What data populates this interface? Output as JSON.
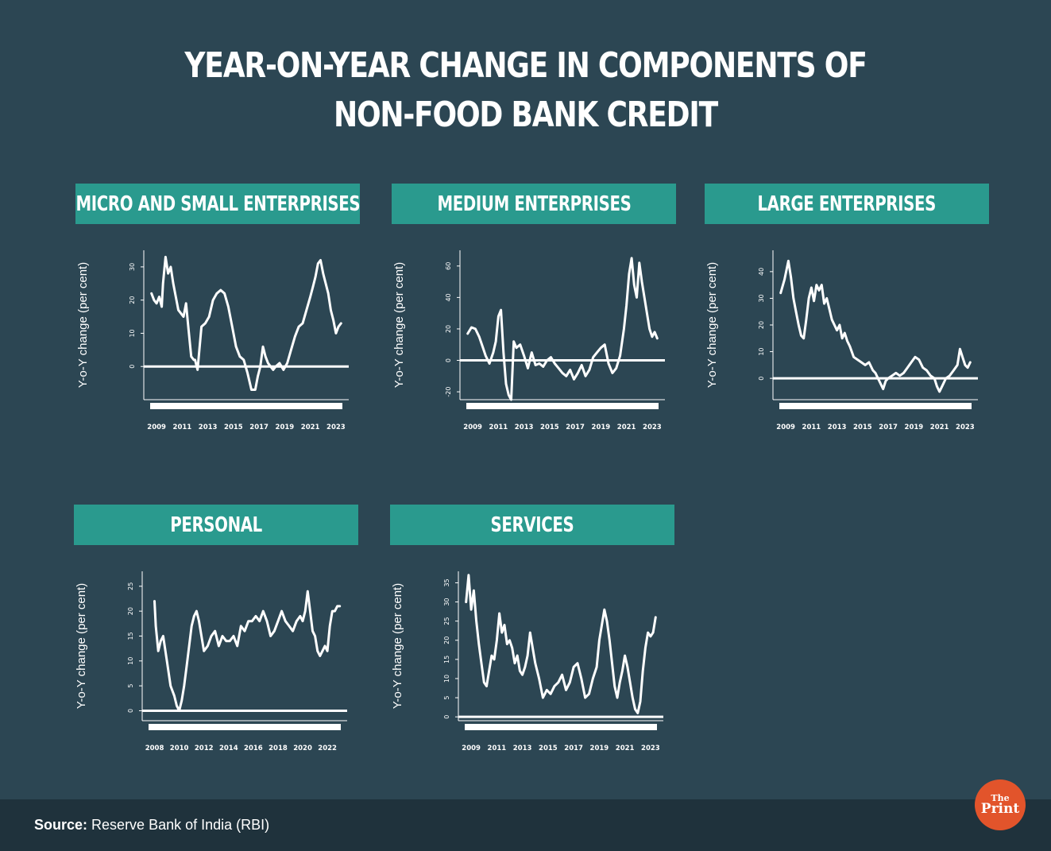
{
  "title_line1": "YEAR-ON-YEAR CHANGE IN COMPONENTS OF",
  "title_line2": "NON-FOOD BANK CREDIT",
  "footer": {
    "source_label": "Source:",
    "source_text": "Reserve Bank of India (RBI)"
  },
  "logo": {
    "top": "The",
    "bottom": "Print"
  },
  "colors": {
    "background": "#2c4653",
    "header": "#2a9a8e",
    "footer": "#1f323c",
    "logo": "#e2542b",
    "line": "#ffffff"
  },
  "chart_data": [
    {
      "type": "line",
      "title": "MICRO AND SMALL ENTERPRISES",
      "ylabel": "Y-o-Y change (per cent)",
      "xlim": [
        2008,
        2024
      ],
      "ylim": [
        -10,
        35
      ],
      "yticks": [
        0,
        10,
        20,
        30
      ],
      "xticks": [
        2009,
        2011,
        2013,
        2015,
        2017,
        2019,
        2021,
        2023
      ],
      "x": [
        2008.6,
        2008.8,
        2009.0,
        2009.2,
        2009.4,
        2009.5,
        2009.7,
        2009.9,
        2010.1,
        2010.3,
        2010.5,
        2010.7,
        2010.9,
        2011.1,
        2011.3,
        2011.5,
        2011.7,
        2011.9,
        2012.0,
        2012.2,
        2012.5,
        2012.8,
        2013.1,
        2013.4,
        2013.7,
        2014.0,
        2014.3,
        2014.6,
        2014.9,
        2015.2,
        2015.5,
        2015.8,
        2016.1,
        2016.4,
        2016.7,
        2016.9,
        2017.1,
        2017.3,
        2017.5,
        2017.7,
        2017.9,
        2018.1,
        2018.3,
        2018.6,
        2018.9,
        2019.2,
        2019.5,
        2019.8,
        2020.1,
        2020.4,
        2020.7,
        2021.0,
        2021.2,
        2021.4,
        2021.6,
        2021.8,
        2022.0,
        2022.2,
        2022.4,
        2022.6,
        2022.8,
        2023.0,
        2023.2,
        2023.4
      ],
      "values": [
        22,
        20,
        19,
        21,
        18,
        25,
        33,
        28,
        30,
        25,
        21,
        17,
        16,
        15,
        19,
        11,
        3,
        2,
        2,
        -1,
        12,
        13,
        15,
        20,
        22,
        23,
        22,
        18,
        12,
        6,
        3,
        2,
        -2,
        -7,
        -7,
        -3,
        0,
        6,
        3,
        1,
        0,
        -1,
        0,
        1,
        -1,
        1,
        5,
        9,
        12,
        13,
        17,
        21,
        24,
        27,
        31,
        32,
        28,
        25,
        22,
        17,
        14,
        10,
        12,
        13
      ]
    },
    {
      "type": "line",
      "title": "MEDIUM ENTERPRISES",
      "ylabel": "Y-o-Y change (per cent)",
      "xlim": [
        2008,
        2024
      ],
      "ylim": [
        -25,
        70
      ],
      "yticks": [
        -20,
        0,
        20,
        40,
        60
      ],
      "xticks": [
        2009,
        2011,
        2013,
        2015,
        2017,
        2019,
        2021,
        2023
      ],
      "x": [
        2008.6,
        2008.9,
        2009.2,
        2009.5,
        2009.8,
        2010.0,
        2010.3,
        2010.6,
        2010.8,
        2011.0,
        2011.2,
        2011.4,
        2011.6,
        2011.8,
        2012.0,
        2012.2,
        2012.4,
        2012.7,
        2013.0,
        2013.3,
        2013.6,
        2013.9,
        2014.2,
        2014.5,
        2014.8,
        2015.1,
        2015.4,
        2015.7,
        2016.0,
        2016.3,
        2016.6,
        2016.9,
        2017.2,
        2017.5,
        2017.8,
        2018.1,
        2018.4,
        2018.7,
        2019.0,
        2019.3,
        2019.6,
        2019.9,
        2020.2,
        2020.5,
        2020.8,
        2021.0,
        2021.2,
        2021.4,
        2021.6,
        2021.8,
        2022.0,
        2022.2,
        2022.4,
        2022.6,
        2022.8,
        2023.0,
        2023.2,
        2023.4
      ],
      "values": [
        17,
        21,
        20,
        15,
        8,
        3,
        -2,
        5,
        12,
        28,
        32,
        5,
        -15,
        -22,
        -25,
        12,
        8,
        10,
        3,
        -5,
        5,
        -3,
        -2,
        -4,
        0,
        2,
        -2,
        -5,
        -8,
        -10,
        -6,
        -12,
        -8,
        -3,
        -10,
        -6,
        2,
        5,
        8,
        10,
        -2,
        -8,
        -5,
        3,
        20,
        35,
        55,
        65,
        48,
        40,
        62,
        50,
        40,
        30,
        20,
        15,
        18,
        14
      ]
    },
    {
      "type": "line",
      "title": "LARGE ENTERPRISES",
      "ylabel": "Y-o-Y change (per cent)",
      "xlim": [
        2008,
        2024
      ],
      "ylim": [
        -8,
        48
      ],
      "yticks": [
        0,
        10,
        20,
        30,
        40
      ],
      "xticks": [
        2009,
        2011,
        2013,
        2015,
        2017,
        2019,
        2021,
        2023
      ],
      "x": [
        2008.6,
        2008.9,
        2009.2,
        2009.4,
        2009.6,
        2009.8,
        2010.0,
        2010.2,
        2010.4,
        2010.6,
        2010.8,
        2011.0,
        2011.2,
        2011.4,
        2011.6,
        2011.8,
        2012.0,
        2012.2,
        2012.4,
        2012.6,
        2012.8,
        2013.0,
        2013.2,
        2013.4,
        2013.6,
        2013.8,
        2014.0,
        2014.3,
        2014.6,
        2014.9,
        2015.2,
        2015.5,
        2015.8,
        2016.0,
        2016.2,
        2016.4,
        2016.6,
        2016.8,
        2017.0,
        2017.3,
        2017.6,
        2017.9,
        2018.2,
        2018.5,
        2018.8,
        2019.1,
        2019.4,
        2019.7,
        2020.0,
        2020.3,
        2020.6,
        2020.8,
        2021.0,
        2021.2,
        2021.5,
        2021.8,
        2022.1,
        2022.4,
        2022.6,
        2022.8,
        2023.0,
        2023.2,
        2023.4
      ],
      "values": [
        32,
        37,
        44,
        38,
        30,
        25,
        20,
        16,
        15,
        22,
        30,
        34,
        29,
        35,
        33,
        35,
        28,
        30,
        26,
        22,
        20,
        18,
        20,
        15,
        17,
        14,
        12,
        8,
        7,
        6,
        5,
        6,
        3,
        2,
        0,
        -2,
        -4,
        -1,
        0,
        1,
        2,
        1,
        2,
        4,
        6,
        8,
        7,
        4,
        3,
        1,
        0,
        -3,
        -5,
        -3,
        0,
        1,
        3,
        5,
        11,
        8,
        5,
        4,
        6
      ]
    },
    {
      "type": "line",
      "title": "PERSONAL",
      "ylabel": "Y-o-Y change (per cent)",
      "xlim": [
        2007,
        2023.6
      ],
      "ylim": [
        -2,
        28
      ],
      "yticks": [
        0,
        5,
        10,
        15,
        20,
        25
      ],
      "xticks": [
        2008,
        2010,
        2012,
        2014,
        2016,
        2018,
        2020,
        2022
      ],
      "x": [
        2008.0,
        2008.1,
        2008.3,
        2008.5,
        2008.7,
        2009.0,
        2009.3,
        2009.6,
        2009.8,
        2010.0,
        2010.2,
        2010.4,
        2010.6,
        2010.8,
        2011.0,
        2011.2,
        2011.4,
        2011.6,
        2011.8,
        2012.0,
        2012.3,
        2012.6,
        2012.9,
        2013.2,
        2013.5,
        2013.8,
        2014.1,
        2014.4,
        2014.7,
        2015.0,
        2015.3,
        2015.6,
        2015.9,
        2016.2,
        2016.5,
        2016.8,
        2017.1,
        2017.4,
        2017.7,
        2018.0,
        2018.3,
        2018.6,
        2018.9,
        2019.2,
        2019.5,
        2019.8,
        2020.0,
        2020.2,
        2020.4,
        2020.6,
        2020.8,
        2021.0,
        2021.2,
        2021.4,
        2021.6,
        2021.8,
        2022.0,
        2022.2,
        2022.4,
        2022.6,
        2022.8,
        2023.0
      ],
      "values": [
        22,
        17,
        12,
        14,
        15,
        10,
        5,
        3,
        1,
        0,
        2,
        5,
        9,
        13,
        17,
        19,
        20,
        18,
        15,
        12,
        13,
        15,
        16,
        13,
        15,
        14,
        14,
        15,
        13,
        17,
        16,
        18,
        18,
        19,
        18,
        20,
        18,
        15,
        16,
        18,
        20,
        18,
        17,
        16,
        18,
        19,
        18,
        20,
        24,
        20,
        16,
        15,
        12,
        11,
        12,
        13,
        12,
        17,
        20,
        20,
        21,
        21
      ]
    },
    {
      "type": "line",
      "title": "SERVICES",
      "ylabel": "Y-o-Y change (per cent)",
      "xlim": [
        2008,
        2024
      ],
      "ylim": [
        -1,
        38
      ],
      "yticks": [
        0,
        5,
        10,
        15,
        20,
        25,
        30,
        35
      ],
      "xticks": [
        2009,
        2011,
        2013,
        2015,
        2017,
        2019,
        2021,
        2023
      ],
      "x": [
        2008.6,
        2008.8,
        2009.0,
        2009.2,
        2009.4,
        2009.6,
        2009.8,
        2010.0,
        2010.2,
        2010.4,
        2010.6,
        2010.8,
        2011.0,
        2011.2,
        2011.4,
        2011.6,
        2011.8,
        2012.0,
        2012.2,
        2012.4,
        2012.6,
        2012.8,
        2013.0,
        2013.2,
        2013.4,
        2013.6,
        2013.8,
        2014.0,
        2014.3,
        2014.6,
        2014.9,
        2015.2,
        2015.5,
        2015.8,
        2016.1,
        2016.4,
        2016.7,
        2017.0,
        2017.3,
        2017.6,
        2017.9,
        2018.2,
        2018.5,
        2018.8,
        2019.0,
        2019.2,
        2019.4,
        2019.6,
        2019.8,
        2020.0,
        2020.2,
        2020.4,
        2020.6,
        2020.8,
        2021.0,
        2021.2,
        2021.4,
        2021.6,
        2021.8,
        2022.0,
        2022.2,
        2022.4,
        2022.6,
        2022.8,
        2023.0,
        2023.2,
        2023.4
      ],
      "values": [
        30,
        37,
        28,
        33,
        25,
        19,
        14,
        9,
        8,
        12,
        16,
        15,
        20,
        27,
        22,
        24,
        19,
        20,
        18,
        14,
        16,
        12,
        11,
        13,
        16,
        22,
        18,
        14,
        10,
        5,
        7,
        6,
        8,
        9,
        11,
        7,
        9,
        13,
        14,
        10,
        5,
        6,
        10,
        13,
        20,
        24,
        28,
        25,
        20,
        14,
        8,
        5,
        9,
        12,
        16,
        13,
        9,
        5,
        2,
        1,
        4,
        12,
        18,
        22,
        21,
        22,
        26
      ]
    }
  ]
}
